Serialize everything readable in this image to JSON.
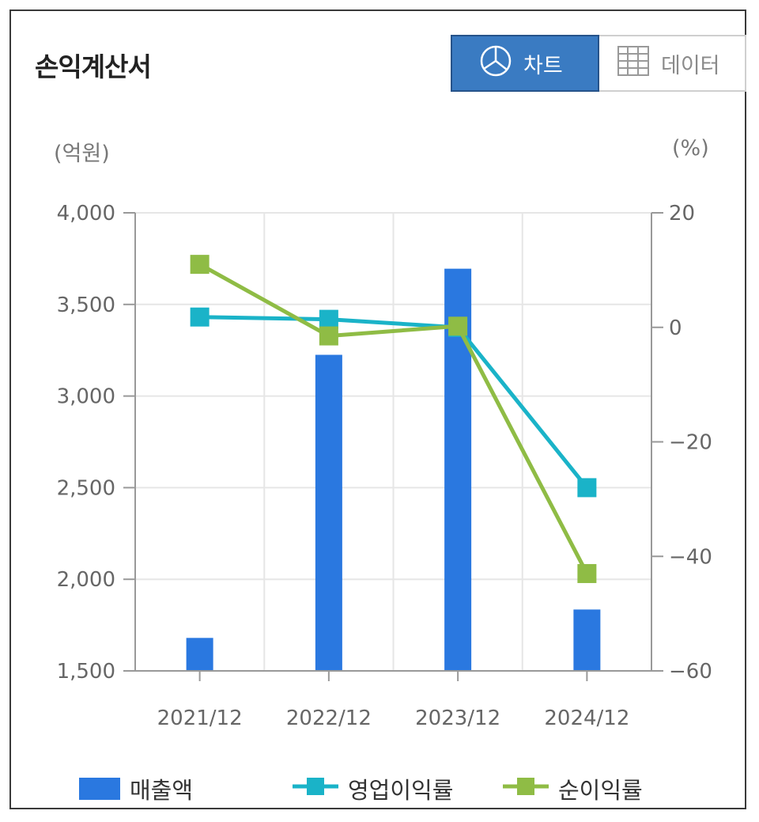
{
  "header": {
    "title": "손익계산서",
    "tab_chart": "차트",
    "tab_data": "데이터"
  },
  "units": {
    "left": "(억원)",
    "right": "(%)"
  },
  "colors": {
    "bar": "#2a78e0",
    "operating_margin": "#1ab3c8",
    "net_margin": "#8fbc45",
    "active_tab": "#3a7bc2"
  },
  "icons": {
    "chart_tab": "pie-chart-icon",
    "data_tab": "table-grid-icon"
  },
  "chart_data": {
    "type": "bar",
    "categories": [
      "2021/12",
      "2022/12",
      "2023/12",
      "2024/12"
    ],
    "series": [
      {
        "name": "매출액",
        "type": "bar",
        "axis": "left",
        "values": [
          1680,
          3225,
          3695,
          1835
        ]
      },
      {
        "name": "영업이익률",
        "type": "line",
        "axis": "right",
        "values": [
          1.8,
          1.4,
          0.0,
          -28.0
        ]
      },
      {
        "name": "순이익률",
        "type": "line",
        "axis": "right",
        "values": [
          11.0,
          -1.5,
          0.2,
          -43.0
        ]
      }
    ],
    "left_axis": {
      "ticks": [
        "4,000",
        "3,500",
        "3,000",
        "2,500",
        "2,000",
        "1,500"
      ],
      "ylim": [
        1500,
        4000
      ]
    },
    "right_axis": {
      "ticks": [
        "20",
        "0",
        "-20",
        "-40",
        "-60"
      ],
      "ylim": [
        -60,
        20
      ]
    },
    "grid": true,
    "legend_position": "bottom"
  }
}
